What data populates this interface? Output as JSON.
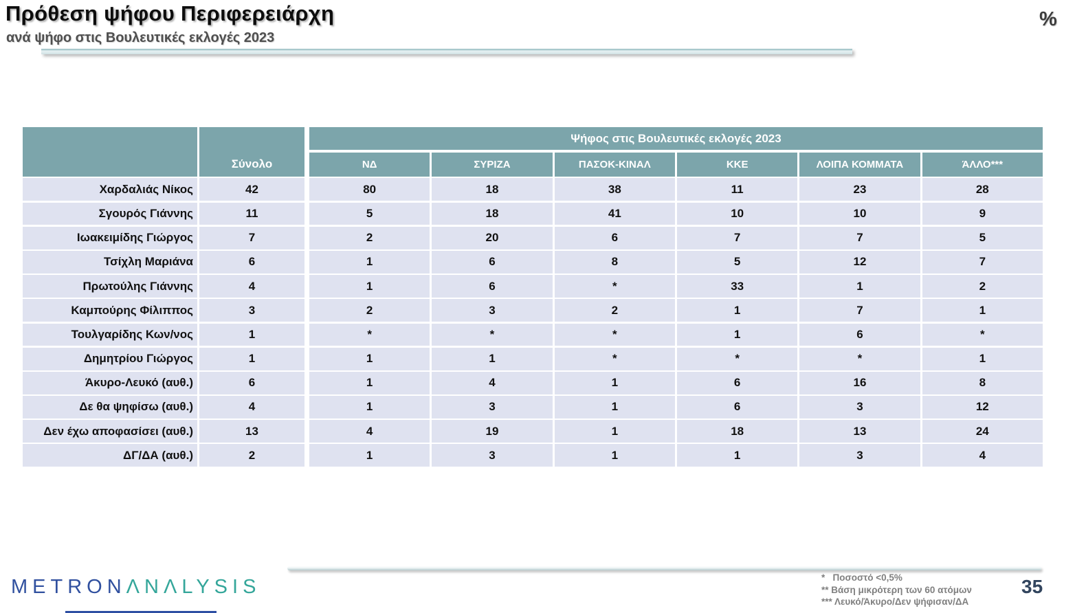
{
  "slide": {
    "unit_symbol": "%",
    "page_number": "35"
  },
  "chart_data": {
    "type": "table",
    "title": "Πρόθεση ψήφου Περιφερειάρχη",
    "subtitle": "ανά ψήφο στις Βουλευτικές εκλογές 2023",
    "unit": "%",
    "group_header": "Ψήφος στις Βουλευτικές εκλογές 2023",
    "total_column": "Σύνολο",
    "party_columns": [
      "ΝΔ",
      "ΣΥΡΙΖΑ",
      "ΠΑΣΟΚ-ΚΙΝΑΛ",
      "ΚΚΕ",
      "ΛΟΙΠΑ ΚΟΜΜΑΤΑ",
      "ΆΛΛΟ***"
    ],
    "rows": [
      {
        "label": "Χαρδαλιάς Νίκος",
        "total": "42",
        "values": [
          "80",
          "18",
          "38",
          "11",
          "23",
          "28"
        ]
      },
      {
        "label": "Σγουρός Γιάννης",
        "total": "11",
        "values": [
          "5",
          "18",
          "41",
          "10",
          "10",
          "9"
        ]
      },
      {
        "label": "Ιωακειμίδης Γιώργος",
        "total": "7",
        "values": [
          "2",
          "20",
          "6",
          "7",
          "7",
          "5"
        ]
      },
      {
        "label": "Τσίχλη Μαριάνα",
        "total": "6",
        "values": [
          "1",
          "6",
          "8",
          "5",
          "12",
          "7"
        ]
      },
      {
        "label": "Πρωτούλης Γιάννης",
        "total": "4",
        "values": [
          "1",
          "6",
          "*",
          "33",
          "1",
          "2"
        ]
      },
      {
        "label": "Καμπούρης Φίλιππος",
        "total": "3",
        "values": [
          "2",
          "3",
          "2",
          "1",
          "7",
          "1"
        ]
      },
      {
        "label": "Τουλγαρίδης Κων/νος",
        "total": "1",
        "values": [
          "*",
          "*",
          "*",
          "1",
          "6",
          "*"
        ]
      },
      {
        "label": "Δημητρίου Γιώργος",
        "total": "1",
        "values": [
          "1",
          "1",
          "*",
          "*",
          "*",
          "1"
        ]
      },
      {
        "label": "Άκυρο-Λευκό (αυθ.)",
        "total": "6",
        "values": [
          "1",
          "4",
          "1",
          "6",
          "16",
          "8"
        ]
      },
      {
        "label": "Δε θα ψηφίσω (αυθ.)",
        "total": "4",
        "values": [
          "1",
          "3",
          "1",
          "6",
          "3",
          "12"
        ]
      },
      {
        "label": "Δεν έχω αποφασίσει (αυθ.)",
        "total": "13",
        "values": [
          "4",
          "19",
          "1",
          "18",
          "13",
          "24"
        ]
      },
      {
        "label": "ΔΓ/ΔΑ (αυθ.)",
        "total": "2",
        "values": [
          "1",
          "3",
          "1",
          "1",
          "3",
          "4"
        ]
      }
    ]
  },
  "footer": {
    "logo_metron": "METRON",
    "logo_analysis": "ΛNΛLYSIS",
    "footnotes": [
      "*   Ποσοστό <0,5%",
      "** Βάση μικρότερη των 60 ατόμων",
      "*** Λευκό/Άκυρο/Δεν ψήφισαν/ΔΑ"
    ]
  },
  "colors": {
    "header_teal": "#7ca5ab",
    "row_background": "#dfe2f0",
    "logo_navy": "#30509f",
    "logo_teal": "#34a69a",
    "page_number_navy": "#32455e",
    "footnote_gray": "#7f7f7f"
  }
}
